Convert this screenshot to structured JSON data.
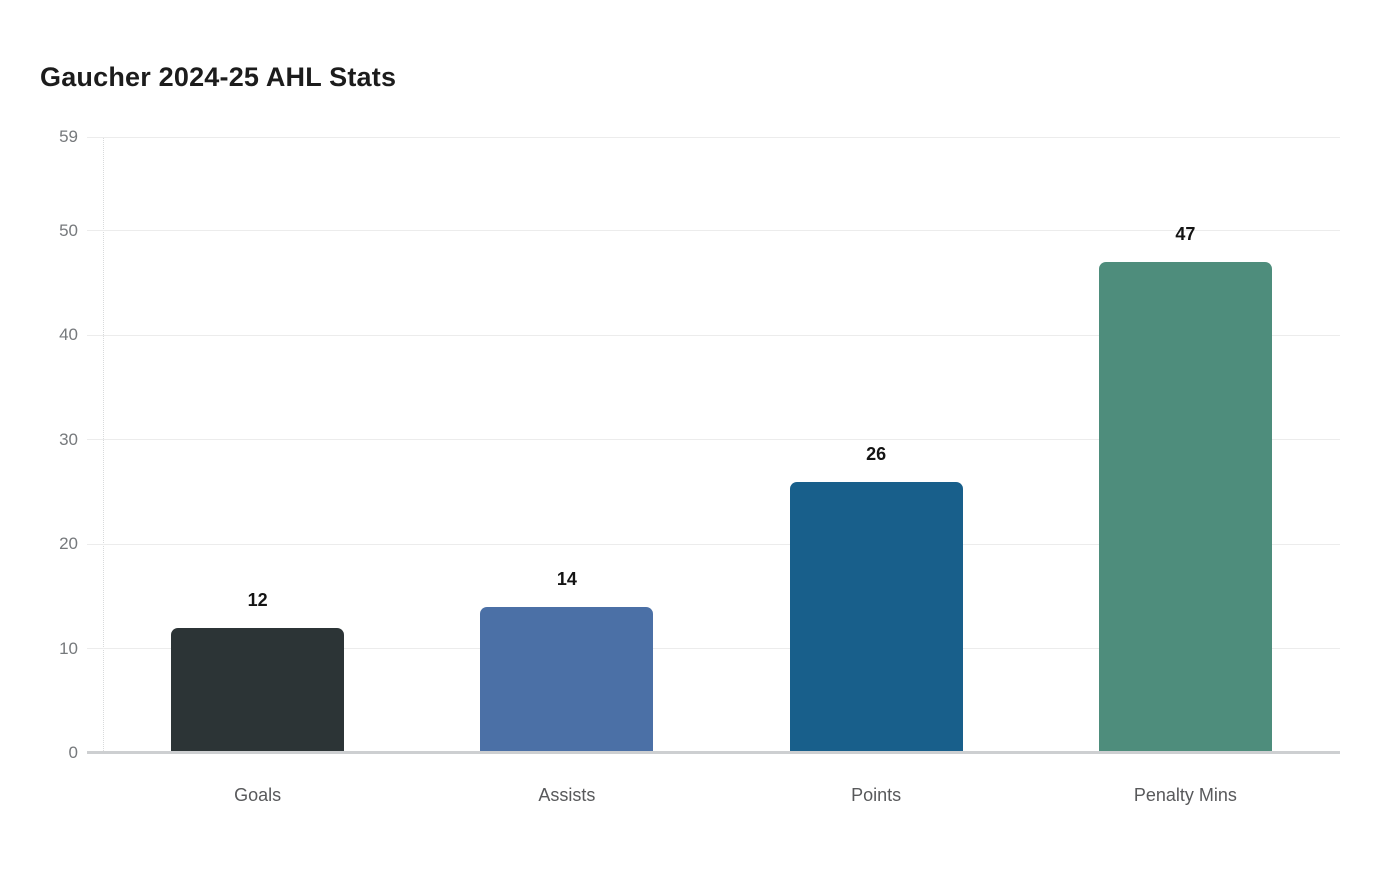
{
  "chart_data": {
    "type": "bar",
    "title": "Gaucher 2024-25 AHL Stats",
    "categories": [
      "Goals",
      "Assists",
      "Points",
      "Penalty Mins"
    ],
    "values": [
      12,
      14,
      26,
      47
    ],
    "bar_colors": [
      "#2c3436",
      "#4b70a6",
      "#185f8b",
      "#4e8d7c"
    ],
    "y_ticks": [
      0,
      10,
      20,
      30,
      40,
      50,
      59
    ],
    "ylim": [
      0,
      59
    ],
    "xlabel": "",
    "ylabel": "",
    "grid": "horizontal",
    "legend": "none",
    "value_labels_shown": true,
    "colors": {
      "background": "#ffffff",
      "title": "#1c1c1c",
      "grid": "#ececec",
      "baseline": "#cdcfd1",
      "axis_dotted": "#d8dadb",
      "tick_label": "#76797c",
      "category_label": "#58595b",
      "value_label": "#141414"
    }
  }
}
